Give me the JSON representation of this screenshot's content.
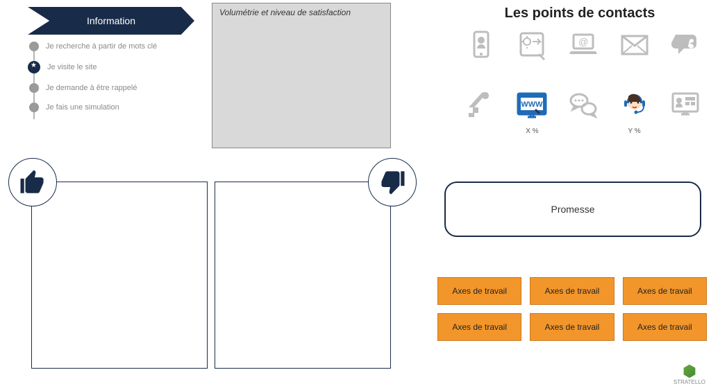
{
  "banner": {
    "title": "Information"
  },
  "journey": {
    "steps": [
      {
        "label": "Je recherche à partir de mots clé",
        "active": false
      },
      {
        "label": "Je visite le site",
        "active": true
      },
      {
        "label": "Je demande à être rappelé",
        "active": false
      },
      {
        "label": "Je fais une simulation",
        "active": false
      }
    ],
    "line_color": "#b5b5b5",
    "dot_color": "#9a9a9a",
    "active_dot_color": "#182b49"
  },
  "satisfaction_box": {
    "title": "Volumétrie et niveau de satisfaction",
    "bg": "#d9d9d9",
    "border": "#888888"
  },
  "contacts": {
    "title": "Les points de contacts",
    "icons": [
      {
        "name": "mobile",
        "label": "",
        "color": "#bdbdbd"
      },
      {
        "name": "tablet",
        "label": "",
        "color": "#bdbdbd"
      },
      {
        "name": "laptop",
        "label": "",
        "color": "#bdbdbd"
      },
      {
        "name": "mail",
        "label": "",
        "color": "#bdbdbd"
      },
      {
        "name": "social",
        "label": "",
        "color": "#bdbdbd"
      },
      {
        "name": "store",
        "label": "",
        "color": "#bdbdbd"
      },
      {
        "name": "web",
        "label": "X %",
        "color": "#1f6bb8"
      },
      {
        "name": "chat",
        "label": "",
        "color": "#bdbdbd"
      },
      {
        "name": "callcenter",
        "label": "Y %",
        "color": "#1f6bb8"
      },
      {
        "name": "kiosk",
        "label": "",
        "color": "#bdbdbd"
      }
    ]
  },
  "positive_box": {
    "border": "#182b49"
  },
  "negative_box": {
    "border": "#182b49"
  },
  "promesse": {
    "label": "Promesse",
    "border": "#182b49"
  },
  "axes": {
    "bg": "#f2962b",
    "border": "#c9781f",
    "items": [
      "Axes de travail",
      "Axes de travail",
      "Axes de travail",
      "Axes de travail",
      "Axes de travail",
      "Axes de travail"
    ]
  },
  "brand": {
    "name": "STRATELLO"
  },
  "palette": {
    "navy": "#182b49",
    "orange": "#f2962b",
    "grey": "#bdbdbd",
    "highlight_blue": "#1f6bb8",
    "white": "#ffffff"
  }
}
